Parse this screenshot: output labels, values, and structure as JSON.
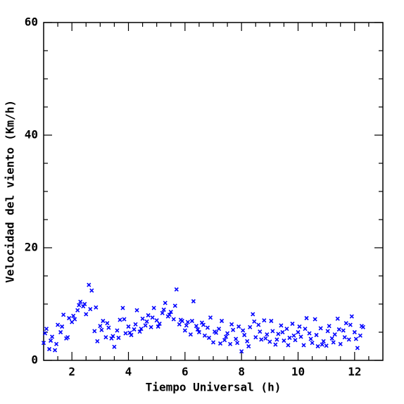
{
  "chart_data": {
    "type": "scatter",
    "xlabel": "Tiempo Universal (h)",
    "ylabel": "Velocidad del viento (Km/h)",
    "xlim": [
      1,
      13
    ],
    "ylim": [
      0,
      60
    ],
    "xticks": [
      2,
      4,
      6,
      8,
      10,
      12
    ],
    "yticks": [
      0,
      20,
      40,
      60
    ],
    "xminorticks": [
      1.5,
      2.5,
      3,
      3.5,
      4.5,
      5,
      5.5,
      6.5,
      7,
      7.5,
      8.5,
      9,
      9.5,
      10.5,
      11,
      11.5,
      12.5
    ],
    "yminorticks": [
      5,
      10,
      15,
      25,
      30,
      35,
      45,
      50,
      55
    ],
    "color": "#0000ff",
    "x": [
      1.0,
      1.1,
      1.2,
      1.3,
      1.4,
      1.5,
      1.6,
      1.7,
      1.8,
      1.9,
      2.0,
      2.1,
      2.2,
      2.3,
      2.4,
      2.5,
      2.6,
      2.7,
      2.8,
      2.9,
      3.0,
      3.1,
      3.2,
      3.3,
      3.4,
      3.5,
      3.6,
      3.7,
      3.8,
      3.9,
      4.0,
      4.1,
      4.2,
      4.3,
      4.4,
      4.5,
      4.6,
      4.7,
      4.8,
      4.9,
      5.0,
      5.1,
      5.2,
      5.3,
      5.4,
      5.5,
      5.6,
      5.7,
      5.8,
      5.9,
      6.0,
      6.1,
      6.2,
      6.3,
      6.4,
      6.5,
      6.6,
      6.7,
      6.8,
      6.9,
      7.0,
      7.1,
      7.2,
      7.3,
      7.4,
      7.5,
      7.6,
      7.7,
      7.8,
      7.9,
      8.0,
      8.1,
      8.2,
      8.3,
      8.4,
      8.5,
      8.6,
      8.7,
      8.8,
      8.9,
      9.0,
      9.1,
      9.2,
      9.3,
      9.4,
      9.5,
      9.6,
      9.7,
      9.8,
      9.9,
      10.0,
      10.1,
      10.2,
      10.3,
      10.4,
      10.5,
      10.6,
      10.7,
      10.8,
      10.9,
      11.0,
      11.1,
      11.2,
      11.3,
      11.4,
      11.5,
      11.6,
      11.7,
      11.8,
      11.9,
      12.0,
      12.1,
      12.2,
      12.3,
      1.05,
      1.25,
      1.45,
      1.65,
      1.85,
      2.05,
      2.25,
      2.45,
      2.65,
      2.85,
      3.05,
      3.25,
      3.45,
      3.65,
      3.85,
      4.05,
      4.25,
      4.45,
      4.65,
      4.85,
      5.05,
      5.25,
      5.45,
      5.65,
      5.85,
      6.05,
      6.25,
      6.45,
      6.65,
      6.85,
      7.05,
      7.25,
      7.45,
      7.65,
      7.85,
      8.05,
      8.25,
      8.45,
      8.65,
      8.85,
      9.05,
      9.25,
      9.45,
      9.65,
      9.85,
      10.05,
      10.25,
      10.45,
      10.65,
      10.85,
      11.05,
      11.25,
      11.45,
      11.65,
      11.85,
      12.05,
      12.25
    ],
    "values": [
      3.1,
      5.6,
      2.0,
      4.2,
      1.8,
      6.3,
      5.0,
      8.1,
      3.9,
      7.5,
      6.8,
      7.3,
      8.9,
      10.4,
      9.6,
      8.2,
      13.4,
      12.4,
      5.2,
      3.4,
      6.1,
      7.0,
      4.1,
      5.8,
      3.9,
      2.4,
      5.3,
      7.2,
      9.3,
      4.8,
      6.0,
      4.5,
      5.5,
      8.9,
      5.1,
      7.4,
      6.2,
      8.0,
      5.9,
      9.3,
      7.1,
      6.5,
      8.4,
      10.2,
      7.8,
      8.6,
      7.3,
      12.6,
      6.4,
      7.0,
      5.3,
      6.8,
      4.6,
      10.5,
      6.1,
      5.0,
      6.7,
      4.4,
      5.8,
      7.6,
      3.2,
      4.9,
      5.6,
      7.0,
      3.6,
      4.8,
      2.9,
      5.4,
      3.8,
      6.0,
      1.6,
      4.5,
      3.4,
      5.9,
      8.2,
      4.1,
      6.3,
      3.7,
      7.1,
      4.6,
      3.3,
      5.2,
      2.8,
      4.7,
      6.2,
      3.5,
      5.6,
      4.0,
      6.5,
      3.6,
      5.0,
      4.2,
      2.7,
      7.5,
      4.8,
      3.1,
      7.3,
      2.5,
      5.7,
      3.4,
      2.6,
      6.1,
      3.9,
      4.6,
      7.4,
      2.9,
      5.3,
      6.6,
      3.7,
      7.8,
      5.0,
      2.2,
      4.4,
      5.9,
      4.8,
      3.5,
      2.9,
      6.0,
      4.1,
      7.9,
      9.8,
      10.0,
      9.1,
      9.4,
      5.4,
      6.6,
      4.3,
      4.0,
      7.3,
      4.9,
      6.4,
      5.6,
      6.9,
      7.6,
      6.0,
      9.0,
      8.1,
      9.7,
      7.2,
      6.2,
      7.0,
      5.5,
      6.3,
      4.0,
      5.1,
      3.0,
      4.2,
      6.4,
      3.1,
      5.3,
      2.5,
      6.9,
      5.1,
      3.9,
      7.0,
      3.7,
      5.0,
      2.7,
      4.4,
      6.0,
      5.6,
      3.8,
      4.5,
      2.8,
      5.2,
      3.2,
      5.5,
      4.1,
      6.3,
      3.8,
      6.1
    ]
  }
}
